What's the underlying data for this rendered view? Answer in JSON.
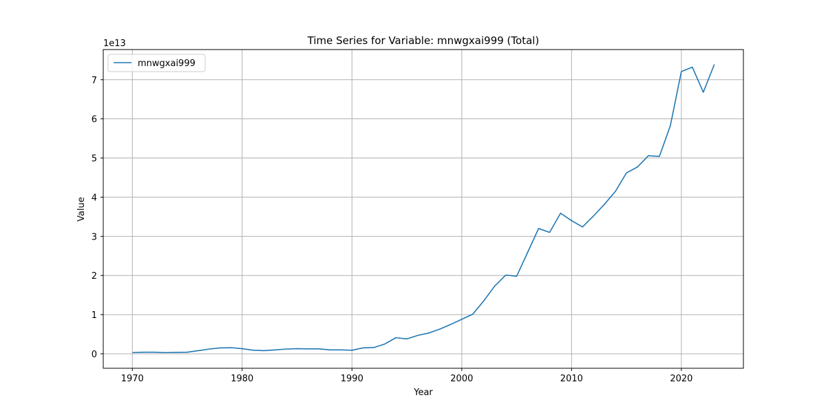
{
  "chart_data": {
    "type": "line",
    "title": "Time Series for Variable: mnwgxai999 (Total)",
    "xlabel": "Year",
    "ylabel": "Value",
    "y_offset_label": "1e13",
    "xlim": [
      1967.35,
      2025.65
    ],
    "ylim": [
      -0.37,
      7.77
    ],
    "x_ticks": [
      1970,
      1980,
      1990,
      2000,
      2010,
      2020
    ],
    "y_ticks": [
      0,
      1,
      2,
      3,
      4,
      5,
      6,
      7
    ],
    "grid": true,
    "legend_position": "top-left",
    "series": [
      {
        "name": "mnwgxai999",
        "color": "#1f77b4",
        "x": [
          1970,
          1971,
          1972,
          1973,
          1974,
          1975,
          1976,
          1977,
          1978,
          1979,
          1980,
          1981,
          1982,
          1983,
          1984,
          1985,
          1986,
          1987,
          1988,
          1989,
          1990,
          1991,
          1992,
          1993,
          1994,
          1995,
          1996,
          1997,
          1998,
          1999,
          2000,
          2001,
          2002,
          2003,
          2004,
          2005,
          2006,
          2007,
          2008,
          2009,
          2010,
          2011,
          2012,
          2013,
          2014,
          2015,
          2016,
          2017,
          2018,
          2019,
          2020,
          2021,
          2022,
          2023
        ],
        "values": [
          0.03,
          0.04,
          0.04,
          0.03,
          0.035,
          0.04,
          0.08,
          0.12,
          0.15,
          0.155,
          0.13,
          0.09,
          0.08,
          0.1,
          0.12,
          0.13,
          0.125,
          0.125,
          0.1,
          0.1,
          0.09,
          0.15,
          0.16,
          0.25,
          0.41,
          0.38,
          0.47,
          0.53,
          0.63,
          0.75,
          0.88,
          1.01,
          1.35,
          1.73,
          2.01,
          1.98,
          2.59,
          3.2,
          3.1,
          3.59,
          3.4,
          3.24,
          3.52,
          3.82,
          4.15,
          4.62,
          4.77,
          5.06,
          5.04,
          5.83,
          7.21,
          7.32,
          6.68,
          7.39
        ]
      }
    ]
  }
}
